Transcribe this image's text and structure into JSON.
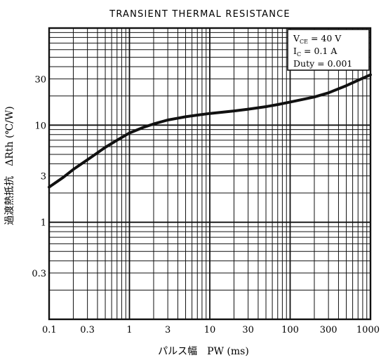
{
  "chart_data": {
    "type": "line",
    "title": "TRANSIENT THERMAL RESISTANCE",
    "xlabel": "パルス幅　PW (ms)",
    "ylabel": "過渡熱抵抗　ΔRth (℃/W)",
    "x_scale": "log",
    "y_scale": "log",
    "xlim": [
      0.1,
      1000
    ],
    "ylim": [
      0.1,
      100
    ],
    "grid": true,
    "x_tick_labels": [
      {
        "value": 0.1,
        "label": "0.1"
      },
      {
        "value": 0.3,
        "label": "0.3"
      },
      {
        "value": 1,
        "label": "1"
      },
      {
        "value": 3,
        "label": "3"
      },
      {
        "value": 10,
        "label": "10"
      },
      {
        "value": 30,
        "label": "30"
      },
      {
        "value": 100,
        "label": "100"
      },
      {
        "value": 300,
        "label": "300"
      },
      {
        "value": 1000,
        "label": "1000"
      }
    ],
    "y_tick_labels": [
      {
        "value": 0.3,
        "label": "0.3"
      },
      {
        "value": 1,
        "label": "1"
      },
      {
        "value": 3,
        "label": "3"
      },
      {
        "value": 10,
        "label": "10"
      },
      {
        "value": 30,
        "label": "30"
      }
    ],
    "legend": {
      "placement": "top-right",
      "lines": [
        "V<sub>CE</sub> = 40 V",
        "I<sub>C</sub> = 0.1 A",
        "Duty = 0.001"
      ],
      "lines_plain": [
        "VCE = 40 V",
        "IC = 0.1 A",
        "Duty = 0.001"
      ]
    },
    "series": [
      {
        "x": [
          0.1,
          0.15,
          0.2,
          0.3,
          0.5,
          0.7,
          1,
          1.5,
          2,
          3,
          5,
          7,
          10,
          20,
          30,
          50,
          70,
          100,
          200,
          300,
          500,
          700,
          1000
        ],
        "y": [
          2.3,
          2.9,
          3.5,
          4.4,
          5.9,
          7.0,
          8.3,
          9.5,
          10.3,
          11.3,
          12.2,
          12.7,
          13.2,
          14.0,
          14.6,
          15.5,
          16.3,
          17.3,
          19.5,
          21.5,
          25.5,
          29.0,
          33.0
        ]
      }
    ]
  },
  "colors": {
    "ink": "#111111",
    "background": "#ffffff"
  }
}
